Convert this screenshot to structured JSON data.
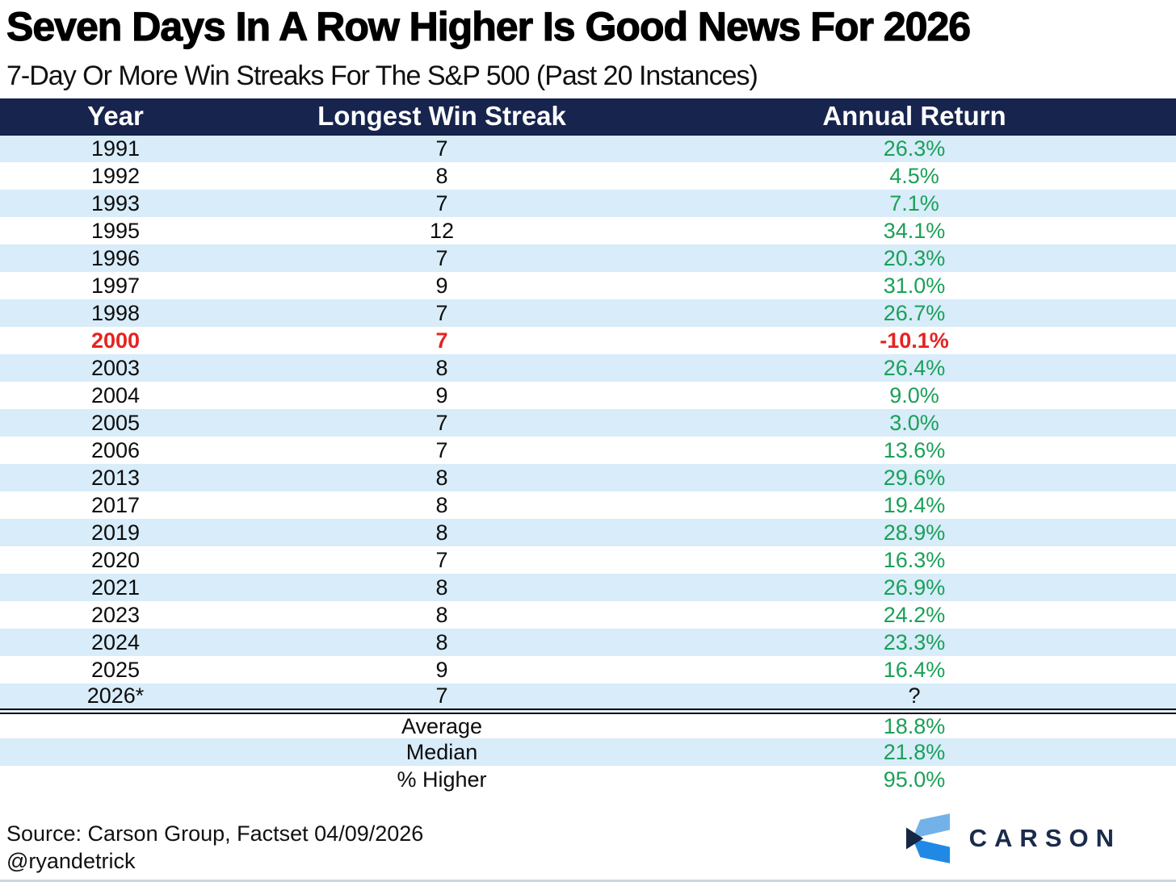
{
  "title": "Seven Days In A Row Higher Is Good News For 2026",
  "subtitle": "7-Day Or More Win Streaks For The S&P 500 (Past 20 Instances)",
  "colors": {
    "header_bg": "#17244d",
    "row_stripe": "#d8ecf9",
    "positive_green": "#1aa058",
    "negative_red": "#e62320",
    "logo_navy": "#1b2b4c",
    "logo_light_blue": "#73b2e8",
    "logo_medium_blue": "#2089e5"
  },
  "chart_data": {
    "type": "table",
    "columns": [
      "Year",
      "Longest Win Streak",
      "Annual Return"
    ],
    "rows": [
      {
        "year": "1991",
        "streak": "7",
        "ret": "26.3%",
        "style": "pos"
      },
      {
        "year": "1992",
        "streak": "8",
        "ret": "4.5%",
        "style": "pos"
      },
      {
        "year": "1993",
        "streak": "7",
        "ret": "7.1%",
        "style": "pos"
      },
      {
        "year": "1995",
        "streak": "12",
        "ret": "34.1%",
        "style": "pos"
      },
      {
        "year": "1996",
        "streak": "7",
        "ret": "20.3%",
        "style": "pos"
      },
      {
        "year": "1997",
        "streak": "9",
        "ret": "31.0%",
        "style": "pos"
      },
      {
        "year": "1998",
        "streak": "7",
        "ret": "26.7%",
        "style": "pos"
      },
      {
        "year": "2000",
        "streak": "7",
        "ret": "-10.1%",
        "style": "neg"
      },
      {
        "year": "2003",
        "streak": "8",
        "ret": "26.4%",
        "style": "pos"
      },
      {
        "year": "2004",
        "streak": "9",
        "ret": "9.0%",
        "style": "pos"
      },
      {
        "year": "2005",
        "streak": "7",
        "ret": "3.0%",
        "style": "pos"
      },
      {
        "year": "2006",
        "streak": "7",
        "ret": "13.6%",
        "style": "pos"
      },
      {
        "year": "2013",
        "streak": "8",
        "ret": "29.6%",
        "style": "pos"
      },
      {
        "year": "2017",
        "streak": "8",
        "ret": "19.4%",
        "style": "pos"
      },
      {
        "year": "2019",
        "streak": "8",
        "ret": "28.9%",
        "style": "pos"
      },
      {
        "year": "2020",
        "streak": "7",
        "ret": "16.3%",
        "style": "pos"
      },
      {
        "year": "2021",
        "streak": "8",
        "ret": "26.9%",
        "style": "pos"
      },
      {
        "year": "2023",
        "streak": "8",
        "ret": "24.2%",
        "style": "pos"
      },
      {
        "year": "2024",
        "streak": "8",
        "ret": "23.3%",
        "style": "pos"
      },
      {
        "year": "2025",
        "streak": "9",
        "ret": "16.4%",
        "style": "pos"
      },
      {
        "year": "2026*",
        "streak": "7",
        "ret": "?",
        "style": "na"
      }
    ],
    "summary": [
      {
        "label": "Average",
        "value": "18.8%"
      },
      {
        "label": "Median",
        "value": "21.8%"
      },
      {
        "label": "% Higher",
        "value": "95.0%"
      }
    ]
  },
  "footer": {
    "source": "Source: Carson Group, Factset 04/09/2026",
    "handle": "@ryandetrick",
    "logo_text": "CARSON"
  }
}
